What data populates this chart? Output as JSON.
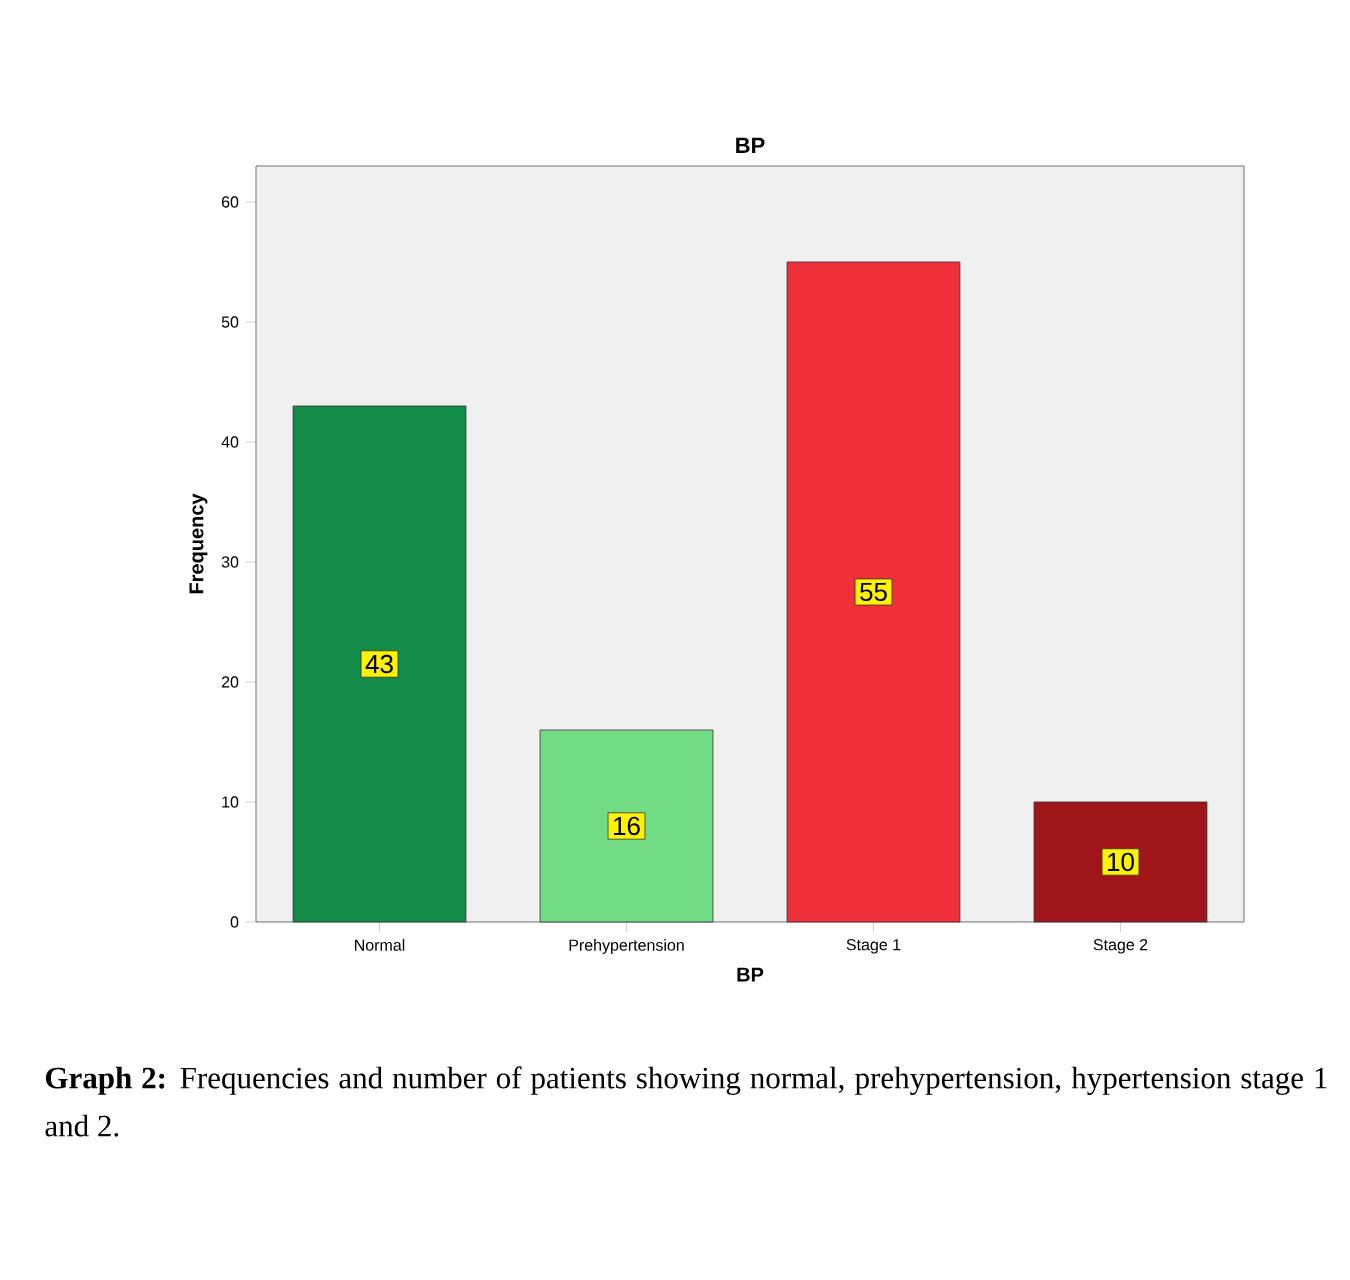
{
  "chart_data": {
    "type": "bar",
    "title": "BP",
    "xlabel": "BP",
    "ylabel": "Frequency",
    "categories": [
      "Normal",
      "Prehypertension",
      "Stage 1",
      "Stage 2"
    ],
    "values": [
      43,
      16,
      55,
      10
    ],
    "colors": [
      "#128c48",
      "#72dc84",
      "#ef3039",
      "#a0141a"
    ],
    "ylim": [
      0,
      63
    ],
    "yticks": [
      0,
      10,
      20,
      30,
      40,
      50,
      60
    ],
    "grid": false,
    "data_labels": true,
    "annotations": [
      "**Graph 2:** Frequencies and number of patients showing normal, prehypertension, hypertension stage 1 and 2."
    ]
  }
}
